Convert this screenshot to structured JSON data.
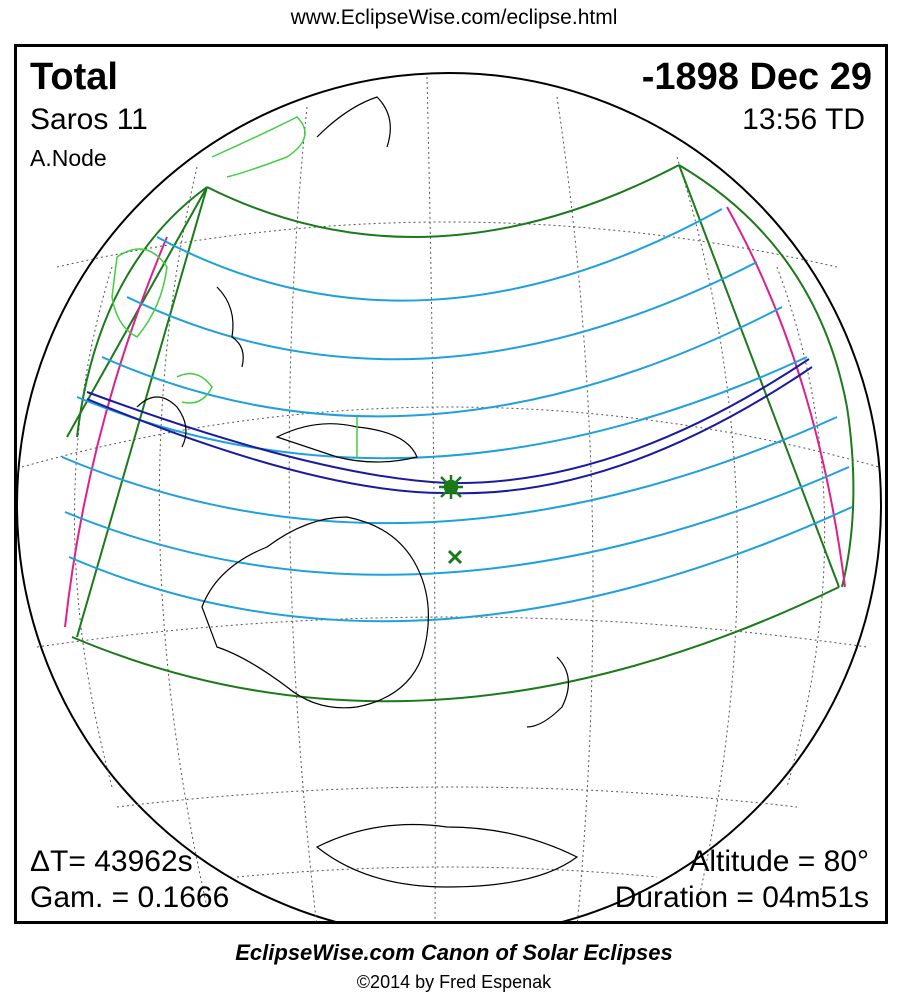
{
  "header": {
    "url": "www.EclipseWise.com/eclipse.html"
  },
  "eclipse": {
    "type": "Total",
    "date": "-1898 Dec 29",
    "saros": "Saros  11",
    "time": "13:56 TD",
    "node": "A.Node",
    "delta_t": "ΔT=  43962s",
    "gamma": "Gam. = 0.1666",
    "altitude": "Altitude = 80°",
    "duration": "Duration = 04m51s"
  },
  "footer": {
    "canon": "EclipseWise.com Canon of Solar Eclipses",
    "copyright": "©2014 by Fred Espenak"
  },
  "colors": {
    "penumbra_limits": "#1a7a1a",
    "rise_set_curves": "#e0208a",
    "magnitude_lines": "#1ea0dc",
    "central_path": "#1a1aa0",
    "coastlines": "#000000",
    "ancient_coast": "#40d040"
  },
  "markers": {
    "greatest_eclipse": "green-star-icon",
    "subsolar_point": "green-x-icon"
  }
}
